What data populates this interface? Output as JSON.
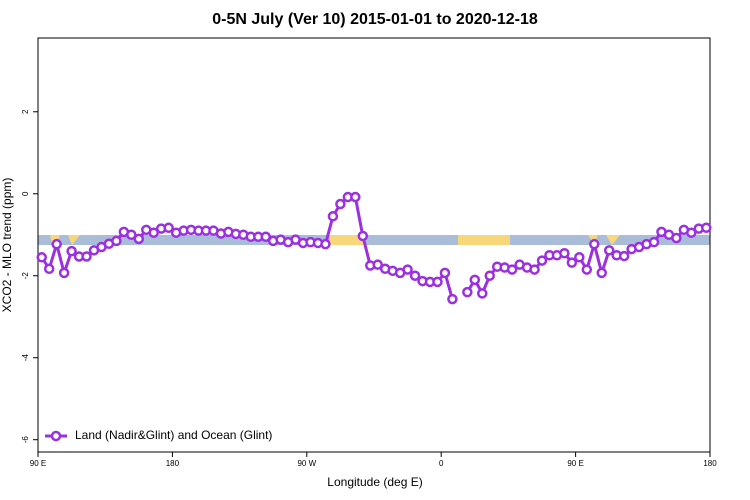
{
  "chart_data": {
    "type": "line",
    "title": "0-5N July (Ver 10)   2015-01-01 to 2020-12-18",
    "x_label": "Longitude (deg E)",
    "y_label": "XCO2 - MLO trend (ppm)",
    "xlim": [
      90,
      540
    ],
    "xticks": [
      {
        "value": 90,
        "label": "90 E"
      },
      {
        "value": 180,
        "label": "180"
      },
      {
        "value": 270,
        "label": "90 W"
      },
      {
        "value": 360,
        "label": "0"
      },
      {
        "value": 450,
        "label": "90 E"
      },
      {
        "value": 540,
        "label": "180"
      }
    ],
    "ylim": [
      -6.3,
      3.8
    ],
    "yticks": [
      2,
      0,
      -2,
      -4,
      -6
    ],
    "grid": false,
    "legend": "bottom-left",
    "x": [
      92.5,
      97.5,
      102.5,
      107.5,
      112.5,
      117.5,
      122.5,
      127.5,
      132.5,
      137.5,
      142.5,
      147.5,
      152.5,
      157.5,
      162.5,
      167.5,
      172.5,
      177.5,
      182.5,
      187.5,
      192.5,
      197.5,
      202.5,
      207.5,
      212.5,
      217.5,
      222.5,
      227.5,
      232.5,
      237.5,
      242.5,
      247.5,
      252.5,
      257.5,
      262.5,
      267.5,
      272.5,
      277.5,
      282.5,
      287.5,
      292.5,
      297.5,
      302.5,
      307.5,
      312.5,
      317.5,
      322.5,
      327.5,
      332.5,
      337.5,
      342.5,
      347.5,
      352.5,
      357.5,
      362.5,
      367.5,
      372.5,
      377.5,
      382.5,
      387.5,
      392.5,
      397.5,
      402.5,
      407.5,
      412.5,
      417.5,
      422.5,
      427.5,
      432.5,
      437.5,
      442.5,
      447.5,
      452.5,
      457.5,
      462.5,
      467.5,
      472.5,
      477.5,
      482.5,
      487.5,
      492.5,
      497.5,
      502.5,
      507.5,
      512.5,
      517.5,
      522.5,
      527.5,
      532.5,
      537.5
    ],
    "series": [
      {
        "name": "Land (Nadir&Glint) and Ocean (Glint)",
        "color": "#9b30e0",
        "values": [
          -1.55,
          -1.83,
          -1.23,
          -1.93,
          -1.4,
          -1.53,
          -1.53,
          -1.38,
          -1.3,
          -1.22,
          -1.15,
          -0.93,
          -1.0,
          -1.1,
          -0.88,
          -0.95,
          -0.85,
          -0.83,
          -0.95,
          -0.9,
          -0.88,
          -0.9,
          -0.9,
          -0.9,
          -0.97,
          -0.93,
          -0.98,
          -1.0,
          -1.05,
          -1.05,
          -1.05,
          -1.15,
          -1.12,
          -1.18,
          -1.12,
          -1.2,
          -1.18,
          -1.2,
          -1.23,
          -0.55,
          -0.25,
          -0.08,
          -0.08,
          -1.03,
          -1.75,
          -1.73,
          -1.83,
          -1.88,
          -1.93,
          -1.85,
          -2.0,
          -2.13,
          -2.15,
          -2.15,
          -1.93,
          -2.57,
          null,
          -2.4,
          -2.1,
          -2.43,
          -2.0,
          -1.78,
          -1.8,
          -1.85,
          -1.73,
          -1.8,
          -1.85,
          -1.63,
          -1.5,
          -1.5,
          -1.45,
          -1.68,
          -1.55,
          -1.85,
          -1.23,
          -1.93,
          -1.38,
          -1.5,
          -1.52,
          -1.35,
          -1.3,
          -1.23,
          -1.18,
          -0.93,
          -1.0,
          -1.08,
          -0.88,
          -0.95,
          -0.85,
          -0.83
        ]
      }
    ]
  }
}
